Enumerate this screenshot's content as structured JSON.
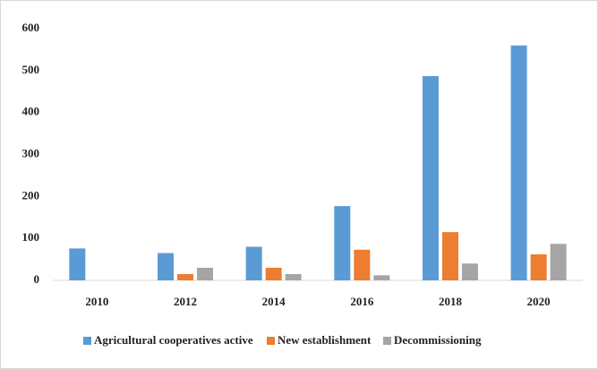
{
  "chart_data": {
    "type": "bar",
    "categories": [
      "2010",
      "2012",
      "2014",
      "2016",
      "2018",
      "2020"
    ],
    "series": [
      {
        "name": "Agricultural cooperatives active",
        "color": "#5b9bd5",
        "values": [
          76,
          65,
          80,
          177,
          487,
          560
        ]
      },
      {
        "name": "New establishment",
        "color": "#ed7d31",
        "values": [
          0,
          15,
          30,
          73,
          115,
          62
        ]
      },
      {
        "name": "Decommissioning",
        "color": "#a5a5a5",
        "values": [
          0,
          30,
          15,
          12,
          40,
          87
        ]
      }
    ],
    "ylim": [
      0,
      600
    ],
    "yticks": [
      0,
      100,
      200,
      300,
      400,
      500,
      600
    ],
    "grid": false,
    "legend": "bottom"
  }
}
